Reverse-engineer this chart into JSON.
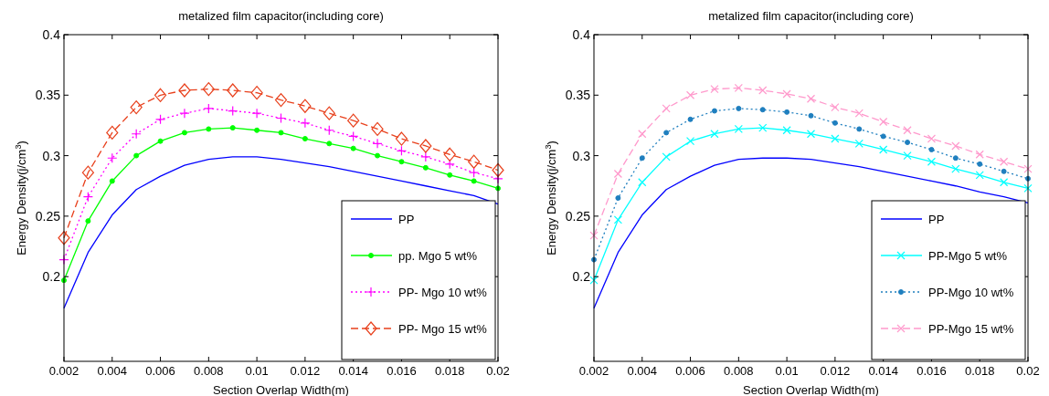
{
  "chart_data": [
    {
      "type": "line",
      "title": "metalized film capacitor(including core)",
      "xlabel": "Section Overlap Width(m)",
      "ylabel": "Energy Density(j/cm$^{3}$)",
      "x": [
        0.002,
        0.003,
        0.004,
        0.005,
        0.006,
        0.007,
        0.008,
        0.009,
        0.01,
        0.011,
        0.012,
        0.013,
        0.014,
        0.015,
        0.016,
        0.017,
        0.018,
        0.019,
        0.02
      ],
      "xlim": [
        0.002,
        0.02
      ],
      "xticks": [
        0.002,
        0.004,
        0.006,
        0.008,
        0.01,
        0.012,
        0.014,
        0.016,
        0.018,
        0.02
      ],
      "ylim": [
        0.13,
        0.4
      ],
      "yticks": [
        0.2,
        0.25,
        0.3,
        0.35,
        0.4
      ],
      "grid": false,
      "legend": "bottom right",
      "series": [
        {
          "name": "PP",
          "color": "#0000ff",
          "marker": "none",
          "line_style": "solid",
          "values": [
            0.174,
            0.22,
            0.251,
            0.272,
            0.283,
            0.292,
            0.297,
            0.299,
            0.299,
            0.297,
            0.294,
            0.291,
            0.287,
            0.283,
            0.279,
            0.275,
            0.271,
            0.267,
            0.26
          ]
        },
        {
          "name": "pp. Mgo 5 wt%",
          "color": "#00ff00",
          "marker": "circle",
          "line_style": "solid",
          "values": [
            0.197,
            0.246,
            0.279,
            0.3,
            0.312,
            0.319,
            0.322,
            0.323,
            0.321,
            0.319,
            0.314,
            0.31,
            0.306,
            0.3,
            0.295,
            0.29,
            0.284,
            0.279,
            0.273
          ]
        },
        {
          "name": "PP- Mgo 10 wt%",
          "color": "#ff00ff",
          "marker": "plus",
          "line_style": "dotted",
          "values": [
            0.214,
            0.266,
            0.298,
            0.318,
            0.33,
            0.335,
            0.339,
            0.337,
            0.335,
            0.331,
            0.327,
            0.321,
            0.316,
            0.31,
            0.304,
            0.299,
            0.293,
            0.286,
            0.281
          ]
        },
        {
          "name": "PP- Mgo 15 wt%",
          "color": "#e8401c",
          "marker": "diamond",
          "line_style": "dashed",
          "values": [
            0.232,
            0.286,
            0.319,
            0.34,
            0.35,
            0.354,
            0.355,
            0.354,
            0.352,
            0.346,
            0.341,
            0.335,
            0.329,
            0.322,
            0.314,
            0.308,
            0.301,
            0.295,
            0.288
          ]
        }
      ]
    },
    {
      "type": "line",
      "title": "metalized film capacitor(including core)",
      "xlabel": "Section Overlap Width(m)",
      "ylabel": "Energy Density(j/cm$^{3}$)",
      "x": [
        0.002,
        0.003,
        0.004,
        0.005,
        0.006,
        0.007,
        0.008,
        0.009,
        0.01,
        0.011,
        0.012,
        0.013,
        0.014,
        0.015,
        0.016,
        0.017,
        0.018,
        0.019,
        0.02
      ],
      "xlim": [
        0.002,
        0.02
      ],
      "xticks": [
        0.002,
        0.004,
        0.006,
        0.008,
        0.01,
        0.012,
        0.014,
        0.016,
        0.018,
        0.02
      ],
      "ylim": [
        0.13,
        0.4
      ],
      "yticks": [
        0.2,
        0.25,
        0.3,
        0.35,
        0.4
      ],
      "grid": false,
      "legend": "bottom right",
      "series": [
        {
          "name": "PP",
          "color": "#0000ff",
          "marker": "none",
          "line_style": "solid",
          "values": [
            0.174,
            0.22,
            0.251,
            0.272,
            0.283,
            0.292,
            0.297,
            0.298,
            0.298,
            0.297,
            0.294,
            0.291,
            0.287,
            0.283,
            0.279,
            0.275,
            0.27,
            0.266,
            0.261
          ]
        },
        {
          "name": "PP-Mgo 5 wt%",
          "color": "#00ffff",
          "marker": "cross",
          "line_style": "solid",
          "values": [
            0.197,
            0.247,
            0.278,
            0.299,
            0.312,
            0.318,
            0.322,
            0.323,
            0.321,
            0.318,
            0.314,
            0.31,
            0.305,
            0.3,
            0.295,
            0.289,
            0.284,
            0.278,
            0.273
          ]
        },
        {
          "name": "PP-Mgo 10 wt%",
          "color": "#1f7fbf",
          "marker": "circle",
          "line_style": "dotted",
          "values": [
            0.214,
            0.265,
            0.298,
            0.319,
            0.33,
            0.337,
            0.339,
            0.338,
            0.336,
            0.333,
            0.327,
            0.322,
            0.316,
            0.311,
            0.305,
            0.298,
            0.293,
            0.287,
            0.281
          ]
        },
        {
          "name": "PP-Mgo 15 wt%",
          "color": "#ff99cc",
          "marker": "cross",
          "line_style": "dashed",
          "values": [
            0.234,
            0.285,
            0.318,
            0.339,
            0.35,
            0.355,
            0.356,
            0.354,
            0.351,
            0.347,
            0.34,
            0.335,
            0.328,
            0.321,
            0.314,
            0.308,
            0.301,
            0.295,
            0.289
          ]
        }
      ]
    }
  ]
}
